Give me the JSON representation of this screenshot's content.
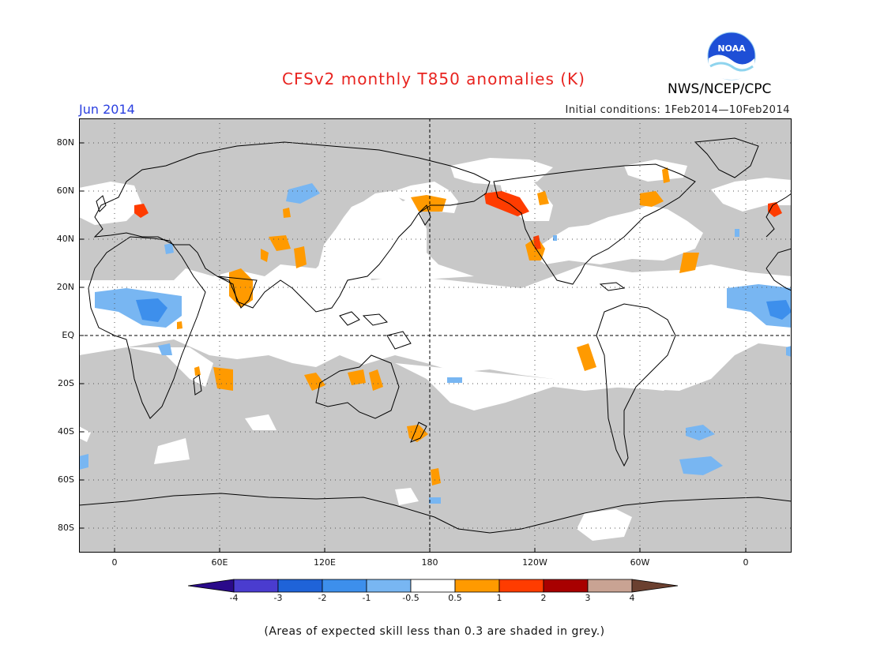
{
  "title": "CFSv2 monthly T850 anomalies (K)",
  "org": "NWS/NCEP/CPC",
  "logo_text": "NOAA",
  "month": "Jun 2014",
  "initial_conditions": "Initial conditions: 1Feb2014—10Feb2014",
  "note": "(Areas of expected skill less than 0.3 are shaded in grey.)",
  "lat_labels": [
    "80N",
    "60N",
    "40N",
    "20N",
    "EQ",
    "20S",
    "40S",
    "60S",
    "80S"
  ],
  "lon_labels": [
    "0",
    "60E",
    "120E",
    "180",
    "120W",
    "60W",
    "0"
  ],
  "colorbar": {
    "labels": [
      "-4",
      "-3",
      "-2",
      "-1",
      "-0.5",
      "0.5",
      "1",
      "2",
      "3",
      "4"
    ],
    "colors": [
      "#2a0a8a",
      "#4a3ccf",
      "#1f63d8",
      "#3d8fec",
      "#78b6f2",
      "#ffffff",
      "#ff9a00",
      "#ff3c00",
      "#a80000",
      "#c9a393",
      "#6b4030"
    ]
  },
  "colors": {
    "grey_shade": "#c8c8c8",
    "title_red": "#e8231f",
    "month_blue": "#2a3fe0"
  }
}
